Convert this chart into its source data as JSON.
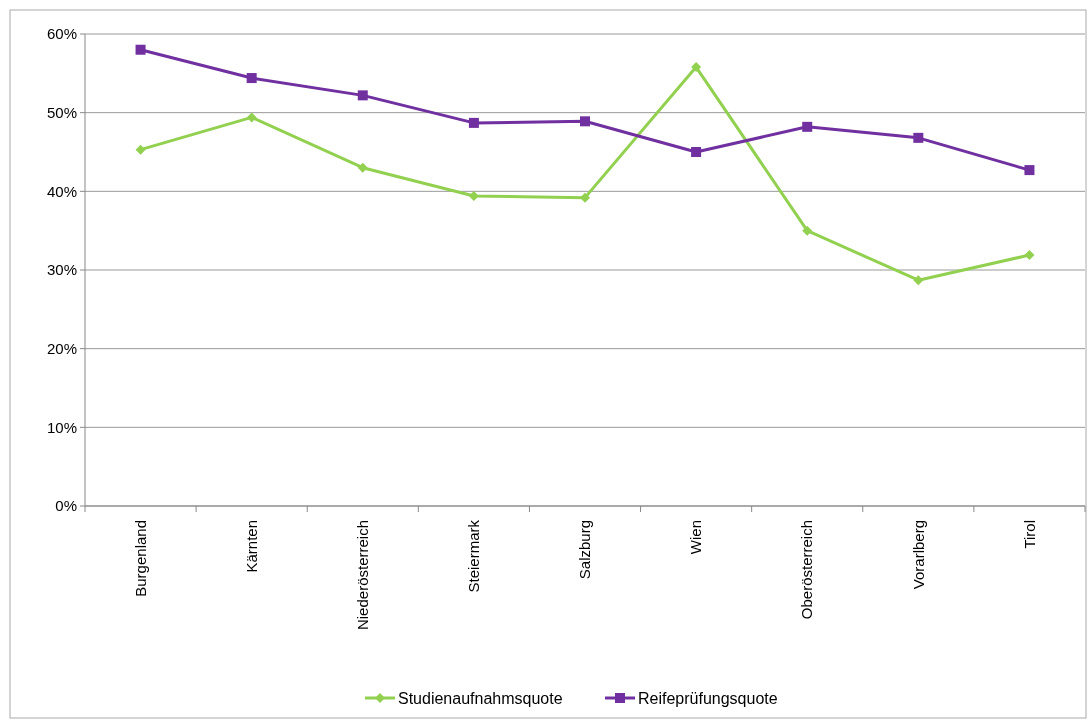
{
  "chart_data": {
    "type": "line",
    "categories": [
      "Burgenland",
      "Kärnten",
      "Niederösterreich",
      "Steiermark",
      "Salzburg",
      "Wien",
      "Oberösterreich",
      "Vorarlberg",
      "Tirol"
    ],
    "series": [
      {
        "name": "Studienaufnahmsquote",
        "color": "#92d050",
        "marker": "diamond",
        "values": [
          45.3,
          49.4,
          43.0,
          39.4,
          39.2,
          55.8,
          35.0,
          28.7,
          31.9
        ]
      },
      {
        "name": "Reifeprüfungsquote",
        "color": "#7030a0",
        "marker": "square",
        "values": [
          58.0,
          54.4,
          52.2,
          48.7,
          48.9,
          45.0,
          48.2,
          46.8,
          42.7
        ]
      }
    ],
    "ylim": [
      0,
      60
    ],
    "yticks": [
      {
        "value": 0,
        "label": "0%"
      },
      {
        "value": 10,
        "label": "10%"
      },
      {
        "value": 20,
        "label": "20%"
      },
      {
        "value": 30,
        "label": "30%"
      },
      {
        "value": 40,
        "label": "40%"
      },
      {
        "value": 50,
        "label": "50%"
      },
      {
        "value": 60,
        "label": "60%"
      }
    ],
    "grid": "y",
    "legend": "bottom"
  }
}
